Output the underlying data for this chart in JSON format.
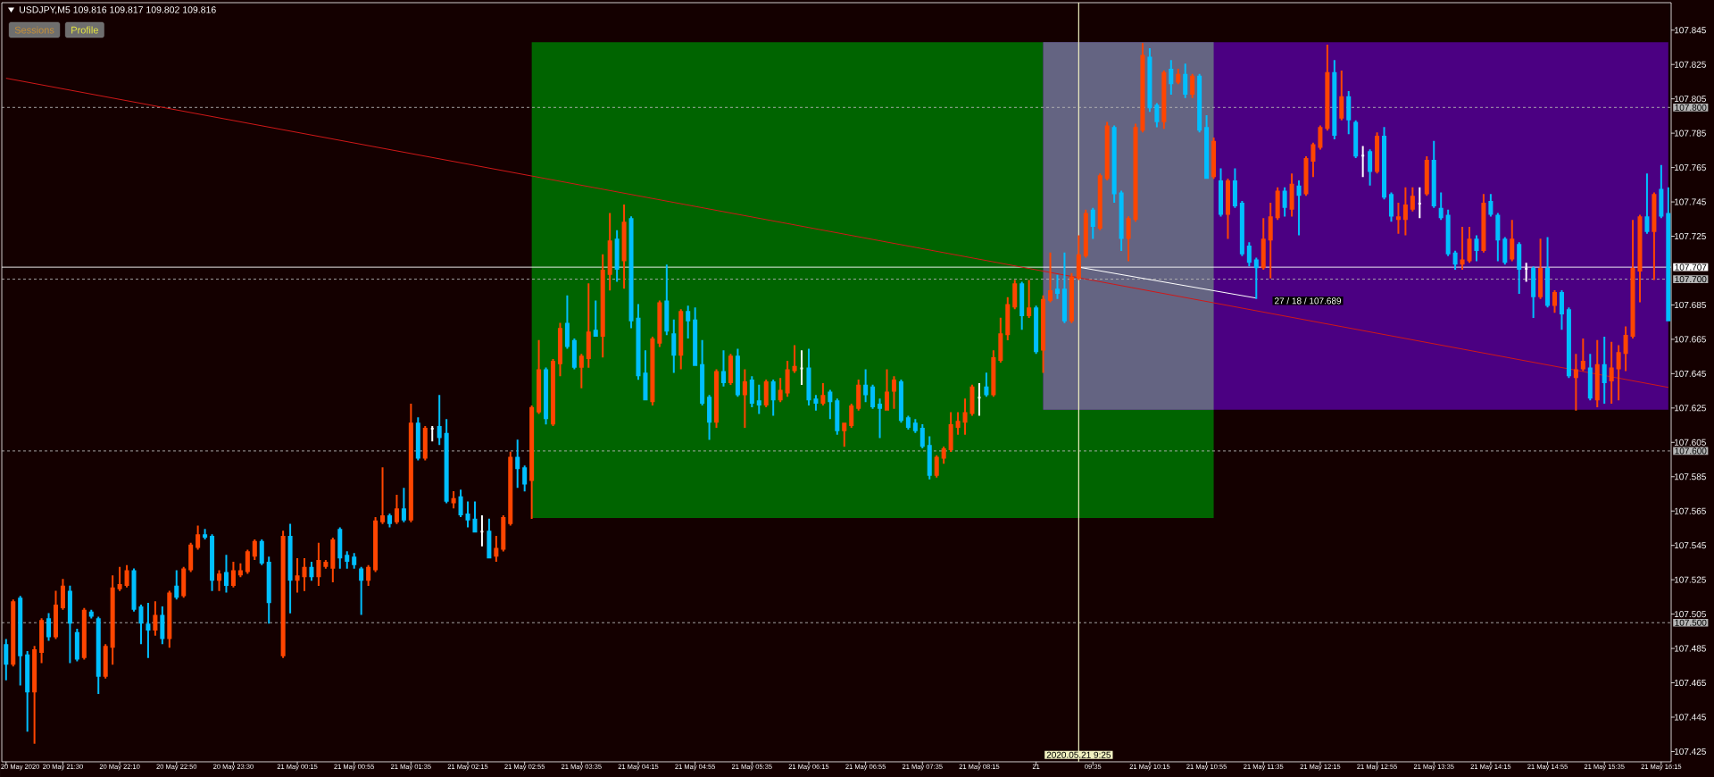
{
  "chart_data": {
    "type": "candlestick",
    "title": "USDJPY,M5 109.816 109.817 109.802 109.816",
    "x": [
      "2020-05-20T20:50",
      "2020-05-20T20:55",
      "2020-05-20T21:00",
      "2020-05-20T21:05",
      "2020-05-20T21:10",
      "2020-05-20T21:15",
      "2020-05-20T21:20",
      "2020-05-20T21:25",
      "2020-05-20T21:30",
      "2020-05-20T21:35",
      "2020-05-20T21:40",
      "2020-05-20T21:45",
      "2020-05-20T21:50",
      "2020-05-20T21:55",
      "2020-05-20T22:00",
      "2020-05-20T22:05",
      "2020-05-20T22:10",
      "2020-05-20T22:15",
      "2020-05-20T22:20",
      "2020-05-20T22:25",
      "2020-05-20T22:30",
      "2020-05-20T22:35",
      "2020-05-20T22:40",
      "2020-05-20T22:45",
      "2020-05-20T22:50",
      "2020-05-20T22:55",
      "2020-05-20T23:00",
      "2020-05-20T23:05",
      "2020-05-20T23:10",
      "2020-05-20T23:15",
      "2020-05-20T23:20",
      "2020-05-20T23:25",
      "2020-05-20T23:30",
      "2020-05-20T23:35",
      "2020-05-20T23:40",
      "2020-05-20T23:45",
      "2020-05-20T23:50",
      "2020-05-20T23:55",
      "2020-05-21T00:05",
      "2020-05-21T00:10",
      "2020-05-21T00:15",
      "2020-05-21T00:20",
      "2020-05-21T00:25",
      "2020-05-21T00:30",
      "2020-05-21T00:35",
      "2020-05-21T00:40",
      "2020-05-21T00:45",
      "2020-05-21T00:50",
      "2020-05-21T00:55",
      "2020-05-21T01:00",
      "2020-05-21T01:05",
      "2020-05-21T01:10",
      "2020-05-21T01:15",
      "2020-05-21T01:20",
      "2020-05-21T01:25",
      "2020-05-21T01:30",
      "2020-05-21T01:35",
      "2020-05-21T01:40",
      "2020-05-21T01:45",
      "2020-05-21T01:50",
      "2020-05-21T01:55",
      "2020-05-21T02:00",
      "2020-05-21T02:05",
      "2020-05-21T02:10",
      "2020-05-21T02:15",
      "2020-05-21T02:20",
      "2020-05-21T02:25",
      "2020-05-21T02:30",
      "2020-05-21T02:35",
      "2020-05-21T02:40",
      "2020-05-21T02:45",
      "2020-05-21T02:50",
      "2020-05-21T02:55",
      "2020-05-21T03:00",
      "2020-05-21T03:05",
      "2020-05-21T03:10",
      "2020-05-21T03:15",
      "2020-05-21T03:20",
      "2020-05-21T03:25",
      "2020-05-21T03:30",
      "2020-05-21T03:35",
      "2020-05-21T03:40",
      "2020-05-21T03:45",
      "2020-05-21T03:50",
      "2020-05-21T03:55",
      "2020-05-21T04:00",
      "2020-05-21T04:05",
      "2020-05-21T04:10",
      "2020-05-21T04:15",
      "2020-05-21T04:20",
      "2020-05-21T04:25",
      "2020-05-21T04:30",
      "2020-05-21T04:35",
      "2020-05-21T04:40",
      "2020-05-21T04:45",
      "2020-05-21T04:50",
      "2020-05-21T04:55",
      "2020-05-21T05:00",
      "2020-05-21T05:05",
      "2020-05-21T05:10",
      "2020-05-21T05:15",
      "2020-05-21T05:20",
      "2020-05-21T05:25",
      "2020-05-21T05:30",
      "2020-05-21T05:35",
      "2020-05-21T05:40",
      "2020-05-21T05:45",
      "2020-05-21T05:50",
      "2020-05-21T05:55",
      "2020-05-21T06:00",
      "2020-05-21T06:05",
      "2020-05-21T06:10",
      "2020-05-21T06:15",
      "2020-05-21T06:20",
      "2020-05-21T06:25",
      "2020-05-21T06:30",
      "2020-05-21T06:35",
      "2020-05-21T06:40",
      "2020-05-21T06:45",
      "2020-05-21T06:50",
      "2020-05-21T06:55",
      "2020-05-21T07:00",
      "2020-05-21T07:05",
      "2020-05-21T07:10",
      "2020-05-21T07:15",
      "2020-05-21T07:20",
      "2020-05-21T07:25",
      "2020-05-21T07:30",
      "2020-05-21T07:35",
      "2020-05-21T07:40",
      "2020-05-21T07:45",
      "2020-05-21T07:50",
      "2020-05-21T07:55",
      "2020-05-21T08:00",
      "2020-05-21T08:05",
      "2020-05-21T08:10",
      "2020-05-21T08:15",
      "2020-05-21T08:20",
      "2020-05-21T08:25",
      "2020-05-21T08:30",
      "2020-05-21T08:35",
      "2020-05-21T08:40",
      "2020-05-21T08:45",
      "2020-05-21T08:50",
      "2020-05-21T08:55",
      "2020-05-21T09:00",
      "2020-05-21T09:05",
      "2020-05-21T09:10",
      "2020-05-21T09:15",
      "2020-05-21T09:20",
      "2020-05-21T09:25",
      "2020-05-21T09:30",
      "2020-05-21T09:35",
      "2020-05-21T09:40",
      "2020-05-21T09:45",
      "2020-05-21T09:50",
      "2020-05-21T09:55",
      "2020-05-21T10:00",
      "2020-05-21T10:05",
      "2020-05-21T10:10",
      "2020-05-21T10:15",
      "2020-05-21T10:20",
      "2020-05-21T10:25",
      "2020-05-21T10:30",
      "2020-05-21T10:35",
      "2020-05-21T10:40",
      "2020-05-21T10:45",
      "2020-05-21T10:50",
      "2020-05-21T10:55",
      "2020-05-21T11:00",
      "2020-05-21T11:05",
      "2020-05-21T11:10",
      "2020-05-21T11:15",
      "2020-05-21T11:20",
      "2020-05-21T11:25",
      "2020-05-21T11:30",
      "2020-05-21T11:35",
      "2020-05-21T11:40",
      "2020-05-21T11:45",
      "2020-05-21T11:50",
      "2020-05-21T11:55",
      "2020-05-21T12:00",
      "2020-05-21T12:05",
      "2020-05-21T12:10",
      "2020-05-21T12:15",
      "2020-05-21T12:20",
      "2020-05-21T12:25",
      "2020-05-21T12:30",
      "2020-05-21T12:35",
      "2020-05-21T12:40",
      "2020-05-21T12:45",
      "2020-05-21T12:50",
      "2020-05-21T12:55",
      "2020-05-21T13:00",
      "2020-05-21T13:05",
      "2020-05-21T13:10",
      "2020-05-21T13:15",
      "2020-05-21T13:20",
      "2020-05-21T13:25",
      "2020-05-21T13:30",
      "2020-05-21T13:35",
      "2020-05-21T13:40",
      "2020-05-21T13:45",
      "2020-05-21T13:50",
      "2020-05-21T13:55",
      "2020-05-21T14:00",
      "2020-05-21T14:05",
      "2020-05-21T14:10",
      "2020-05-21T14:15",
      "2020-05-21T14:20",
      "2020-05-21T14:25",
      "2020-05-21T14:30",
      "2020-05-21T14:35",
      "2020-05-21T14:40",
      "2020-05-21T14:45",
      "2020-05-21T14:50",
      "2020-05-21T14:55",
      "2020-05-21T15:00",
      "2020-05-21T15:05",
      "2020-05-21T15:10",
      "2020-05-21T15:15",
      "2020-05-21T15:20",
      "2020-05-21T15:25",
      "2020-05-21T15:30",
      "2020-05-21T15:35",
      "2020-05-21T15:40",
      "2020-05-21T15:45",
      "2020-05-21T15:50",
      "2020-05-21T15:55",
      "2020-05-21T16:00",
      "2020-05-21T16:05",
      "2020-05-21T16:10",
      "2020-05-21T16:15",
      "2020-05-21T16:20"
    ],
    "ohlc": [
      [
        107.487,
        107.49,
        107.467,
        107.476
      ],
      [
        107.476,
        107.513,
        107.475,
        107.512
      ],
      [
        107.514,
        107.515,
        107.464,
        107.481
      ],
      [
        107.481,
        107.483,
        107.437,
        107.46
      ],
      [
        107.46,
        107.486,
        107.43,
        107.484
      ],
      [
        107.483,
        107.502,
        107.477,
        107.501
      ],
      [
        107.502,
        107.505,
        107.49,
        107.492
      ],
      [
        107.492,
        107.518,
        107.491,
        107.51
      ],
      [
        107.509,
        107.525,
        107.508,
        107.521
      ],
      [
        107.518,
        107.521,
        107.477,
        107.5
      ],
      [
        107.494,
        107.496,
        107.478,
        107.479
      ],
      [
        107.48,
        107.508,
        107.479,
        107.507
      ],
      [
        107.506,
        107.507,
        107.503,
        107.504
      ],
      [
        107.502,
        107.503,
        107.459,
        107.469
      ],
      [
        107.469,
        107.487,
        107.468,
        107.486
      ],
      [
        107.486,
        107.527,
        107.476,
        107.52
      ],
      [
        107.52,
        107.532,
        107.519,
        107.522
      ],
      [
        107.522,
        107.533,
        107.521,
        107.53
      ],
      [
        107.53,
        107.531,
        107.507,
        107.508
      ],
      [
        107.509,
        107.51,
        107.488,
        107.5
      ],
      [
        107.499,
        107.511,
        107.48,
        107.496
      ],
      [
        107.496,
        107.512,
        107.493,
        107.504
      ],
      [
        107.504,
        107.509,
        107.488,
        107.491
      ],
      [
        107.491,
        107.518,
        107.486,
        107.517
      ],
      [
        107.521,
        107.53,
        107.514,
        107.515
      ],
      [
        107.516,
        107.532,
        107.515,
        107.531
      ],
      [
        107.531,
        107.546,
        107.53,
        107.545
      ],
      [
        107.544,
        107.556,
        107.543,
        107.551
      ],
      [
        107.551,
        107.554,
        107.549,
        107.55
      ],
      [
        107.55,
        107.551,
        107.519,
        107.525
      ],
      [
        107.525,
        107.53,
        107.519,
        107.528
      ],
      [
        107.529,
        107.539,
        107.518,
        107.522
      ],
      [
        107.522,
        107.535,
        107.521,
        107.53
      ],
      [
        107.528,
        107.534,
        107.527,
        107.53
      ],
      [
        107.53,
        107.542,
        107.529,
        107.541
      ],
      [
        107.539,
        107.548,
        107.537,
        107.547
      ],
      [
        107.547,
        107.548,
        107.534,
        107.535
      ],
      [
        107.535,
        107.538,
        107.5,
        107.512
      ],
      [
        107.481,
        107.553,
        107.48,
        107.55
      ],
      [
        107.55,
        107.557,
        107.506,
        107.525
      ],
      [
        107.525,
        107.537,
        107.518,
        107.527
      ],
      [
        107.527,
        107.537,
        107.519,
        107.532
      ],
      [
        107.532,
        107.535,
        107.525,
        107.527
      ],
      [
        107.527,
        107.546,
        107.522,
        107.536
      ],
      [
        107.533,
        107.536,
        107.532,
        107.535
      ],
      [
        107.532,
        107.549,
        107.524,
        107.548
      ],
      [
        107.554,
        107.555,
        107.532,
        107.538
      ],
      [
        107.539,
        107.541,
        107.532,
        107.536
      ],
      [
        107.538,
        107.54,
        107.532,
        107.534
      ],
      [
        107.531,
        107.532,
        107.505,
        107.525
      ],
      [
        107.525,
        107.533,
        107.522,
        107.532
      ],
      [
        107.531,
        107.561,
        107.53,
        107.559
      ],
      [
        107.559,
        107.59,
        107.558,
        107.562
      ],
      [
        107.562,
        107.563,
        107.556,
        107.558
      ],
      [
        107.559,
        107.574,
        107.558,
        107.566
      ],
      [
        107.566,
        107.578,
        107.559,
        107.56
      ],
      [
        107.56,
        107.627,
        107.559,
        107.616
      ],
      [
        107.616,
        107.619,
        107.595,
        107.596
      ],
      [
        107.596,
        107.614,
        107.595,
        107.613
      ],
      [
        107.613,
        107.614,
        107.606,
        107.613
      ],
      [
        107.614,
        107.632,
        107.604,
        107.608
      ],
      [
        107.61,
        107.618,
        107.57,
        107.571
      ],
      [
        107.57,
        107.576,
        107.567,
        107.572
      ],
      [
        107.573,
        107.577,
        107.562,
        107.563
      ],
      [
        107.563,
        107.57,
        107.556,
        107.56
      ],
      [
        107.56,
        107.57,
        107.553,
        107.553
      ],
      [
        107.553,
        107.562,
        107.545,
        107.553
      ],
      [
        107.553,
        107.56,
        107.538,
        107.538
      ],
      [
        107.539,
        107.55,
        107.536,
        107.543
      ],
      [
        107.543,
        107.562,
        107.542,
        107.561
      ],
      [
        107.558,
        107.599,
        107.557,
        107.596
      ],
      [
        107.596,
        107.606,
        107.579,
        107.59
      ],
      [
        107.59,
        107.591,
        107.577,
        107.581
      ],
      [
        107.583,
        107.626,
        107.561,
        107.625
      ],
      [
        107.623,
        107.664,
        107.622,
        107.647
      ],
      [
        107.647,
        107.648,
        107.616,
        107.619
      ],
      [
        107.616,
        107.653,
        107.615,
        107.652
      ],
      [
        107.651,
        107.674,
        107.644,
        107.671
      ],
      [
        107.674,
        107.69,
        107.66,
        107.661
      ],
      [
        107.664,
        107.665,
        107.648,
        107.649
      ],
      [
        107.649,
        107.656,
        107.637,
        107.655
      ],
      [
        107.654,
        107.697,
        107.649,
        107.669
      ],
      [
        107.67,
        107.687,
        107.667,
        107.667
      ],
      [
        107.667,
        107.714,
        107.655,
        107.705
      ],
      [
        107.703,
        107.738,
        107.694,
        107.722
      ],
      [
        107.723,
        107.728,
        107.699,
        107.706
      ],
      [
        107.711,
        107.743,
        107.695,
        107.733
      ],
      [
        107.735,
        107.736,
        107.672,
        107.676
      ],
      [
        107.677,
        107.685,
        107.642,
        107.644
      ],
      [
        107.645,
        107.658,
        107.63,
        107.63
      ],
      [
        107.629,
        107.666,
        107.627,
        107.665
      ],
      [
        107.663,
        107.687,
        107.661,
        107.686
      ],
      [
        107.687,
        107.708,
        107.668,
        107.67
      ],
      [
        107.668,
        107.676,
        107.646,
        107.656
      ],
      [
        107.656,
        107.682,
        107.648,
        107.681
      ],
      [
        107.681,
        107.684,
        107.666,
        107.676
      ],
      [
        107.676,
        107.683,
        107.65,
        107.65
      ],
      [
        107.65,
        107.664,
        107.627,
        107.628
      ],
      [
        107.631,
        107.632,
        107.607,
        107.617
      ],
      [
        107.617,
        107.647,
        107.614,
        107.646
      ],
      [
        107.646,
        107.658,
        107.638,
        107.64
      ],
      [
        107.64,
        107.656,
        107.639,
        107.655
      ],
      [
        107.655,
        107.659,
        107.632,
        107.633
      ],
      [
        107.633,
        107.647,
        107.614,
        107.64
      ],
      [
        107.641,
        107.643,
        107.626,
        107.628
      ],
      [
        107.629,
        107.638,
        107.622,
        107.627
      ],
      [
        107.627,
        107.641,
        107.626,
        107.64
      ],
      [
        107.64,
        107.641,
        107.621,
        107.63
      ],
      [
        107.63,
        107.642,
        107.629,
        107.635
      ],
      [
        107.634,
        107.652,
        107.632,
        107.647
      ],
      [
        107.647,
        107.661,
        107.646,
        107.649
      ],
      [
        107.648,
        107.658,
        107.639,
        107.648
      ],
      [
        107.648,
        107.659,
        107.627,
        107.63
      ],
      [
        107.63,
        107.632,
        107.624,
        107.628
      ],
      [
        107.628,
        107.639,
        107.627,
        107.632
      ],
      [
        107.634,
        107.635,
        107.619,
        107.629
      ],
      [
        107.629,
        107.63,
        107.61,
        107.612
      ],
      [
        107.612,
        107.616,
        107.603,
        107.616
      ],
      [
        107.615,
        107.627,
        107.614,
        107.626
      ],
      [
        107.625,
        107.641,
        107.624,
        107.638
      ],
      [
        107.638,
        107.647,
        107.629,
        107.633
      ],
      [
        107.637,
        107.638,
        107.625,
        107.626
      ],
      [
        107.627,
        107.63,
        107.608,
        107.625
      ],
      [
        107.624,
        107.647,
        107.624,
        107.634
      ],
      [
        107.635,
        107.643,
        107.625,
        107.641
      ],
      [
        107.64,
        107.641,
        107.617,
        107.618
      ],
      [
        107.619,
        107.62,
        107.613,
        107.614
      ],
      [
        107.616,
        107.618,
        107.611,
        107.612
      ],
      [
        107.613,
        107.615,
        107.602,
        107.603
      ],
      [
        107.603,
        107.608,
        107.584,
        107.586
      ],
      [
        107.586,
        107.597,
        107.585,
        107.596
      ],
      [
        107.596,
        107.602,
        107.593,
        107.601
      ],
      [
        107.601,
        107.622,
        107.6,
        107.615
      ],
      [
        107.614,
        107.622,
        107.61,
        107.617
      ],
      [
        107.617,
        107.63,
        107.61,
        107.622
      ],
      [
        107.622,
        107.638,
        107.621,
        107.637
      ],
      [
        107.631,
        107.639,
        107.621,
        107.631
      ],
      [
        107.637,
        107.645,
        107.632,
        107.633
      ],
      [
        107.633,
        107.658,
        107.632,
        107.654
      ],
      [
        107.653,
        107.677,
        107.652,
        107.668
      ],
      [
        107.668,
        107.689,
        107.665,
        107.685
      ],
      [
        107.684,
        107.699,
        107.683,
        107.697
      ],
      [
        107.697,
        107.698,
        107.671,
        107.679
      ],
      [
        107.679,
        107.699,
        107.678,
        107.683
      ],
      [
        107.683,
        107.684,
        107.657,
        107.658
      ],
      [
        107.659,
        107.69,
        107.646,
        107.688
      ],
      [
        107.688,
        107.715,
        107.687,
        107.693
      ],
      [
        107.694,
        107.702,
        107.689,
        107.692
      ],
      [
        107.694,
        107.715,
        107.675,
        107.676
      ],
      [
        107.676,
        107.703,
        107.675,
        107.701
      ],
      [
        107.701,
        107.725,
        107.7,
        107.714
      ],
      [
        107.714,
        107.74,
        107.713,
        107.738
      ],
      [
        107.74,
        107.741,
        107.724,
        107.731
      ],
      [
        107.73,
        107.761,
        107.729,
        107.76
      ],
      [
        107.759,
        107.791,
        107.758,
        107.789
      ],
      [
        107.788,
        107.789,
        107.745,
        107.75
      ],
      [
        107.75,
        107.751,
        107.717,
        107.724
      ],
      [
        107.724,
        107.736,
        107.711,
        107.735
      ],
      [
        107.735,
        107.79,
        107.734,
        107.788
      ],
      [
        107.787,
        107.837,
        107.786,
        107.83
      ],
      [
        107.829,
        107.834,
        107.798,
        107.8
      ],
      [
        107.801,
        107.802,
        107.789,
        107.792
      ],
      [
        107.792,
        107.821,
        107.788,
        107.82
      ],
      [
        107.822,
        107.827,
        107.808,
        107.814
      ],
      [
        107.815,
        107.822,
        107.814,
        107.819
      ],
      [
        107.819,
        107.825,
        107.806,
        107.808
      ],
      [
        107.808,
        107.819,
        107.806,
        107.818
      ],
      [
        107.818,
        107.819,
        107.786,
        107.787
      ],
      [
        107.788,
        107.795,
        107.759,
        107.759
      ],
      [
        107.76,
        107.782,
        107.759,
        107.78
      ],
      [
        107.757,
        107.764,
        107.737,
        107.738
      ],
      [
        107.738,
        107.758,
        107.724,
        107.757
      ],
      [
        107.757,
        107.764,
        107.742,
        107.743
      ],
      [
        107.744,
        107.745,
        107.714,
        107.715
      ],
      [
        107.719,
        107.721,
        107.708,
        107.71
      ],
      [
        107.711,
        107.712,
        107.689,
        107.707
      ],
      [
        107.707,
        107.735,
        107.706,
        107.723
      ],
      [
        107.723,
        107.744,
        107.701,
        107.736
      ],
      [
        107.736,
        107.753,
        107.735,
        107.751
      ],
      [
        107.751,
        107.753,
        107.737,
        107.742
      ],
      [
        107.741,
        107.761,
        107.737,
        107.755
      ],
      [
        107.754,
        107.757,
        107.726,
        107.749
      ],
      [
        107.75,
        107.771,
        107.749,
        107.77
      ],
      [
        107.769,
        107.779,
        107.76,
        107.778
      ],
      [
        107.777,
        107.789,
        107.776,
        107.788
      ],
      [
        107.788,
        107.836,
        107.787,
        107.82
      ],
      [
        107.82,
        107.827,
        107.782,
        107.784
      ],
      [
        107.794,
        107.821,
        107.793,
        107.806
      ],
      [
        107.806,
        107.809,
        107.785,
        107.793
      ],
      [
        107.791,
        107.792,
        107.771,
        107.772
      ],
      [
        107.772,
        107.777,
        107.76,
        107.772
      ],
      [
        107.774,
        107.775,
        107.755,
        107.763
      ],
      [
        107.763,
        107.785,
        107.762,
        107.783
      ],
      [
        107.783,
        107.788,
        107.747,
        107.748
      ],
      [
        107.749,
        107.75,
        107.734,
        107.737
      ],
      [
        107.735,
        107.744,
        107.727,
        107.736
      ],
      [
        107.735,
        107.753,
        107.726,
        107.743
      ],
      [
        107.741,
        107.753,
        107.74,
        107.748
      ],
      [
        107.744,
        107.753,
        107.736,
        107.744
      ],
      [
        107.75,
        107.771,
        107.749,
        107.769
      ],
      [
        107.769,
        107.78,
        107.742,
        107.743
      ],
      [
        107.741,
        107.75,
        107.735,
        107.736
      ],
      [
        107.737,
        107.74,
        107.714,
        107.715
      ],
      [
        107.715,
        107.716,
        107.706,
        107.709
      ],
      [
        107.709,
        107.73,
        107.706,
        107.711
      ],
      [
        107.711,
        107.73,
        107.71,
        107.723
      ],
      [
        107.723,
        107.725,
        107.711,
        107.717
      ],
      [
        107.717,
        107.749,
        107.716,
        107.744
      ],
      [
        107.745,
        107.749,
        107.737,
        107.738
      ],
      [
        107.737,
        107.738,
        107.711,
        107.723
      ],
      [
        107.723,
        107.724,
        107.709,
        107.71
      ],
      [
        107.712,
        107.734,
        107.711,
        107.723
      ],
      [
        107.72,
        107.721,
        107.692,
        107.706
      ],
      [
        107.706,
        107.709,
        107.699,
        107.706
      ],
      [
        107.706,
        107.707,
        107.678,
        107.69
      ],
      [
        107.69,
        107.723,
        107.689,
        107.706
      ],
      [
        107.706,
        107.724,
        107.684,
        107.685
      ],
      [
        107.685,
        107.693,
        107.681,
        107.692
      ],
      [
        107.692,
        107.693,
        107.671,
        107.68
      ],
      [
        107.682,
        107.683,
        107.643,
        107.644
      ],
      [
        107.643,
        107.656,
        107.624,
        107.647
      ],
      [
        107.648,
        107.665,
        107.647,
        107.652
      ],
      [
        107.648,
        107.656,
        107.63,
        107.631
      ],
      [
        107.63,
        107.664,
        107.626,
        107.65
      ],
      [
        107.65,
        107.666,
        107.628,
        107.64
      ],
      [
        107.641,
        107.663,
        107.628,
        107.648
      ],
      [
        107.648,
        107.661,
        107.63,
        107.657
      ],
      [
        107.657,
        107.672,
        107.647,
        107.667
      ],
      [
        107.667,
        107.734,
        107.666,
        107.706
      ],
      [
        107.705,
        107.737,
        107.687,
        107.736
      ],
      [
        107.736,
        107.761,
        107.727,
        107.728
      ],
      [
        107.728,
        107.75,
        107.7,
        107.749
      ],
      [
        107.752,
        107.766,
        107.736,
        107.737
      ],
      [
        107.738,
        107.753,
        107.676,
        107.676
      ]
    ],
    "colors": [
      "#00bfff",
      "#ff4500",
      "#00bfff",
      "#00bfff",
      "#ff4500",
      "#ff4500",
      "#00bfff",
      "#ff4500",
      "#ff4500",
      "#00bfff",
      "#00bfff",
      "#ff4500",
      "#00bfff",
      "#00bfff",
      "#ff4500",
      "#ff4500",
      "#ff4500",
      "#ff4500",
      "#00bfff",
      "#00bfff",
      "#00bfff",
      "#ff4500",
      "#00bfff",
      "#ff4500",
      "#00bfff",
      "#ff4500",
      "#ff4500",
      "#ff4500",
      "#00bfff",
      "#00bfff",
      "#ff4500",
      "#00bfff",
      "#ff4500",
      "#ff4500",
      "#ff4500",
      "#ff4500",
      "#00bfff",
      "#00bfff",
      "#ff4500",
      "#00bfff",
      "#ff4500",
      "#ff4500",
      "#00bfff",
      "#ff4500",
      "#ff4500",
      "#ff4500",
      "#00bfff",
      "#00bfff",
      "#00bfff",
      "#00bfff",
      "#ff4500",
      "#ff4500",
      "#ff4500",
      "#00bfff",
      "#ff4500",
      "#00bfff",
      "#ff4500",
      "#00bfff",
      "#ff4500",
      "#ffffff",
      "#00bfff",
      "#00bfff",
      "#ff4500",
      "#00bfff",
      "#00bfff",
      "#00bfff",
      "#ffffff",
      "#00bfff",
      "#ff4500",
      "#ff4500",
      "#ff4500",
      "#00bfff",
      "#00bfff",
      "#ff4500",
      "#ff4500",
      "#00bfff",
      "#ff4500",
      "#ff4500",
      "#00bfff",
      "#00bfff",
      "#ff4500",
      "#ff4500",
      "#00bfff",
      "#ff4500",
      "#ff4500",
      "#00bfff",
      "#ff4500",
      "#00bfff",
      "#00bfff",
      "#00bfff",
      "#ff4500",
      "#ff4500",
      "#00bfff",
      "#00bfff",
      "#ff4500",
      "#00bfff",
      "#00bfff",
      "#00bfff",
      "#00bfff",
      "#ff4500",
      "#00bfff",
      "#ff4500",
      "#00bfff",
      "#ff4500",
      "#00bfff",
      "#00bfff",
      "#ff4500",
      "#00bfff",
      "#ff4500",
      "#ff4500",
      "#ff4500",
      "#ffffff",
      "#00bfff",
      "#00bfff",
      "#ff4500",
      "#00bfff",
      "#00bfff",
      "#ff4500",
      "#ff4500",
      "#ff4500",
      "#00bfff",
      "#00bfff",
      "#00bfff",
      "#ff4500",
      "#ff4500",
      "#00bfff",
      "#00bfff",
      "#00bfff",
      "#00bfff",
      "#00bfff",
      "#ff4500",
      "#ff4500",
      "#ff4500",
      "#ff4500",
      "#ff4500",
      "#ff4500",
      "#ffffff",
      "#00bfff",
      "#ff4500",
      "#ff4500",
      "#ff4500",
      "#ff4500",
      "#00bfff",
      "#ff4500",
      "#00bfff",
      "#ff4500",
      "#ff4500",
      "#00bfff",
      "#00bfff",
      "#ff4500",
      "#ff4500",
      "#ff4500",
      "#00bfff",
      "#ff4500",
      "#ff4500",
      "#00bfff",
      "#00bfff",
      "#ff4500",
      "#ff4500",
      "#ff4500",
      "#00bfff",
      "#00bfff",
      "#ff4500",
      "#00bfff",
      "#ff4500",
      "#00bfff",
      "#ff4500",
      "#00bfff",
      "#00bfff",
      "#ff4500",
      "#00bfff",
      "#ff4500",
      "#00bfff",
      "#00bfff",
      "#00bfff",
      "#00bfff",
      "#ff4500",
      "#ff4500",
      "#ff4500",
      "#00bfff",
      "#ff4500",
      "#00bfff",
      "#ff4500",
      "#ff4500",
      "#ff4500",
      "#ff4500",
      "#00bfff",
      "#ff4500",
      "#00bfff",
      "#00bfff",
      "#ffffff",
      "#00bfff",
      "#ff4500",
      "#00bfff",
      "#00bfff",
      "#ff4500",
      "#ff4500",
      "#ff4500",
      "#ffffff",
      "#ff4500",
      "#00bfff",
      "#00bfff",
      "#00bfff",
      "#00bfff",
      "#ff4500",
      "#ff4500",
      "#00bfff",
      "#ff4500",
      "#00bfff",
      "#00bfff",
      "#00bfff",
      "#ff4500",
      "#00bfff",
      "#ffffff",
      "#00bfff",
      "#ff4500",
      "#00bfff",
      "#ff4500",
      "#00bfff",
      "#00bfff",
      "#ff4500",
      "#ff4500",
      "#00bfff",
      "#ff4500",
      "#00bfff",
      "#ff4500",
      "#ff4500",
      "#ff4500",
      "#ff4500",
      "#ff4500",
      "#00bfff",
      "#ff4500",
      "#00bfff",
      "#00bfff"
    ],
    "series": [
      {
        "type": "line",
        "x": [
          "2020-05-21T03:00",
          "2020-05-21T11:00"
        ],
        "values": [
          null,
          null
        ],
        "lower": [
          107.561,
          107.561
        ],
        "upper": [
          107.838,
          107.838
        ],
        "color": "#006400"
      },
      {
        "type": "line",
        "x": [
          "2020-05-21T09:00",
          "2020-05-21T16:20"
        ],
        "values": [
          null,
          null
        ],
        "lower": [
          107.624,
          107.624
        ],
        "upper": [
          107.838,
          107.838
        ],
        "color": "#4b0082"
      },
      {
        "type": "line",
        "x": [
          "2020-05-21T09:00",
          "2020-05-21T11:00"
        ],
        "values": [
          null,
          null
        ],
        "lower": [
          107.624,
          107.624
        ],
        "upper": [
          107.838,
          107.838
        ],
        "color": "#646482"
      },
      {
        "type": "line",
        "x": [
          "2020-05-20T20:50",
          "2020-05-21T16:20"
        ],
        "values": [
          107.817,
          107.637
        ],
        "color": "#d01818"
      },
      {
        "type": "line",
        "x": [
          "2020-05-21T09:25",
          "2020-05-21T11:30"
        ],
        "values": [
          107.707,
          107.689
        ],
        "color": "#ffffff"
      }
    ],
    "xlim": [
      "2020-05-20T20:47",
      "2020-05-21T16:22"
    ],
    "ylim": [
      107.419,
      107.861
    ],
    "xticks": [
      {
        "value": "2020-05-20T20:50",
        "label": null
      },
      {
        "value": "2020-05-20T21:30",
        "label": "20 May 21:30"
      },
      {
        "value": "2020-05-20T22:10",
        "label": "20 May 22:10"
      },
      {
        "value": "2020-05-20T22:50",
        "label": "20 May 22:50"
      },
      {
        "value": "2020-05-20T23:30",
        "label": "20 May 23:30"
      },
      {
        "value": "2020-05-21T00:15",
        "label": "21 May 00:15"
      },
      {
        "value": "2020-05-21T00:55",
        "label": "21 May 00:55"
      },
      {
        "value": "2020-05-21T01:35",
        "label": "21 May 01:35"
      },
      {
        "value": "2020-05-21T02:15",
        "label": "21 May 02:15"
      },
      {
        "value": "2020-05-21T02:55",
        "label": "21 May 02:55"
      },
      {
        "value": "2020-05-21T03:35",
        "label": "21 May 03:35"
      },
      {
        "value": "2020-05-21T04:15",
        "label": "21 May 04:15"
      },
      {
        "value": "2020-05-21T04:55",
        "label": "21 May 04:55"
      },
      {
        "value": "2020-05-21T05:35",
        "label": "21 May 05:35"
      },
      {
        "value": "2020-05-21T06:15",
        "label": "21 May 06:15"
      },
      {
        "value": "2020-05-21T06:55",
        "label": "21 May 06:55"
      },
      {
        "value": "2020-05-21T07:35",
        "label": "21 May 07:35"
      },
      {
        "value": "2020-05-21T08:15",
        "label": "21 May 08:15"
      },
      {
        "value": "2020-05-21T08:55",
        "label": "21"
      },
      {
        "value": "2020-05-21T09:35",
        "label": "09:35"
      },
      {
        "value": "2020-05-21T10:15",
        "label": "21 May 10:15"
      },
      {
        "value": "2020-05-21T10:55",
        "label": "21 May 10:55"
      },
      {
        "value": "2020-05-21T11:35",
        "label": "21 May 11:35"
      },
      {
        "value": "2020-05-21T12:15",
        "label": "21 May 12:15"
      },
      {
        "value": "2020-05-21T12:55",
        "label": "21 May 12:55"
      },
      {
        "value": "2020-05-21T13:35",
        "label": "21 May 13:35"
      },
      {
        "value": "2020-05-21T14:15",
        "label": "21 May 14:15"
      },
      {
        "value": "2020-05-21T14:55",
        "label": "21 May 14:55"
      },
      {
        "value": "2020-05-21T15:35",
        "label": "21 May 15:35"
      },
      {
        "value": "2020-05-21T16:15",
        "label": "21 May 16:15"
      }
    ],
    "yticks": [
      107.425,
      107.445,
      107.465,
      107.485,
      107.505,
      107.525,
      107.545,
      107.565,
      107.585,
      107.605,
      107.625,
      107.645,
      107.665,
      107.685,
      107.725,
      107.745,
      107.765,
      107.785,
      107.805,
      107.825,
      107.845
    ],
    "ref_lines": [
      {
        "axis": "y",
        "value": 107.8,
        "label": "107.800",
        "color": "#b4b4b4",
        "line_style": "dashed"
      },
      {
        "axis": "y",
        "value": 107.7,
        "label": "107.700",
        "color": "#b4b4b4",
        "line_style": "dashed"
      },
      {
        "axis": "y",
        "value": 107.6,
        "label": "107.600",
        "color": "#b4b4b4",
        "line_style": "dashed"
      },
      {
        "axis": "y",
        "value": 107.5,
        "label": "107.500",
        "color": "#b4b4b4",
        "line_style": "dashed"
      },
      {
        "axis": "y",
        "value": 107.707,
        "label": "107.707",
        "color": "#ffffff",
        "line_style": "solid"
      },
      {
        "axis": "x",
        "value": "2020-05-21T09:25",
        "label": "2020.05.21 9:25",
        "color": "#f0f0c0",
        "line_style": "solid"
      }
    ],
    "annotations": [
      "Sessions",
      "Profile",
      {
        "text": "27 / 18 / 107.689",
        "x": "2020-05-21T11:30",
        "y": 107.689
      },
      "20 May 2020"
    ]
  }
}
